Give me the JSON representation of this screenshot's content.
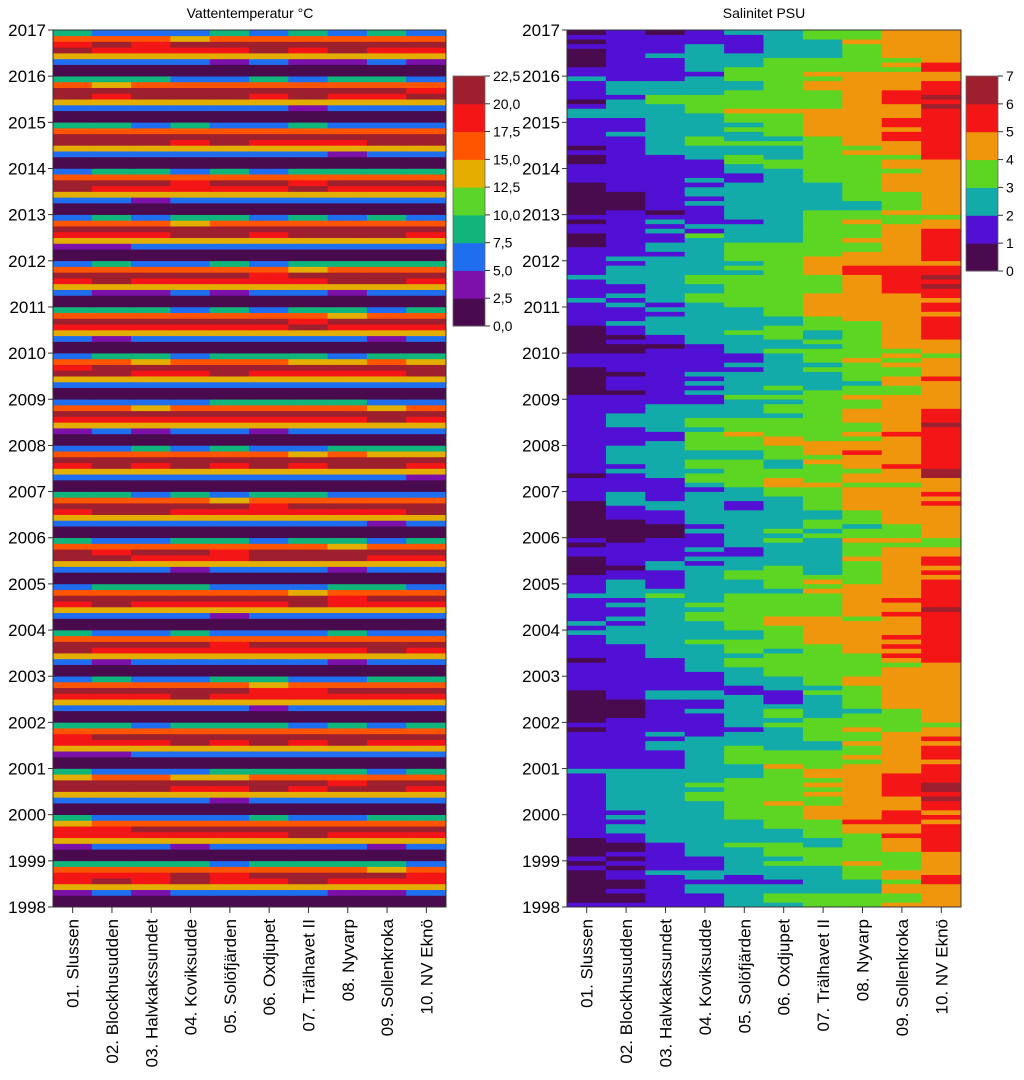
{
  "chart_data": [
    {
      "type": "heatmap",
      "title": "Vattentemperatur °C",
      "xlabel": "",
      "ylabel": "",
      "categories": [
        "01. Slussen",
        "02. Blockhusudden",
        "03. Halvkakssundet",
        "04. Koviksudde",
        "05. Solöfjärden",
        "06. Oxdjupet",
        "07. Trälhavet II",
        "08. Nyvarp",
        "09. Sollenkroka",
        "10. NV Eknö"
      ],
      "y_ticks": [
        "1998",
        "1999",
        "2000",
        "2001",
        "2002",
        "2003",
        "2004",
        "2005",
        "2006",
        "2007",
        "2008",
        "2009",
        "2010",
        "2011",
        "2012",
        "2013",
        "2014",
        "2015",
        "2016",
        "2017"
      ],
      "ylim": [
        1998,
        2017
      ],
      "colorbar": {
        "ticks": [
          "0,0",
          "2,5",
          "5,0",
          "7,5",
          "10,0",
          "12,5",
          "15,0",
          "17,5",
          "20,0",
          "22,5"
        ],
        "range": [
          0,
          22.5
        ]
      },
      "palette": [
        "#4a0a4e",
        "#7b11a8",
        "#1f6ef0",
        "#0fb57a",
        "#5ad62a",
        "#e3ae00",
        "#ff5400",
        "#f41616",
        "#9e1f2e"
      ],
      "data_summary": "Seasonal cycle: surface water temperature oscillates each year between about 0 °C in winter and 17.5–20 °C in summer, nearly uniform across all stations.",
      "legend_position": "right"
    },
    {
      "type": "heatmap",
      "title": "Salinitet PSU",
      "xlabel": "",
      "ylabel": "",
      "categories": [
        "01. Slussen",
        "02. Blockhusudden",
        "03. Halvkakssundet",
        "04. Koviksudde",
        "05. Solöfjärden",
        "06. Oxdjupet",
        "07. Trälhavet II",
        "08. Nyvarp",
        "09. Sollenkroka",
        "10. NV Eknö"
      ],
      "y_ticks": [
        "1998",
        "1999",
        "2000",
        "2001",
        "2002",
        "2003",
        "2004",
        "2005",
        "2006",
        "2007",
        "2008",
        "2009",
        "2010",
        "2011",
        "2012",
        "2013",
        "2014",
        "2015",
        "2016",
        "2017"
      ],
      "ylim": [
        1998,
        2017
      ],
      "colorbar": {
        "ticks": [
          "0",
          "1",
          "2",
          "3",
          "4",
          "5",
          "6",
          "7"
        ],
        "range": [
          0,
          7
        ]
      },
      "palette": [
        "#4a0a4e",
        "#5210d4",
        "#13aaaa",
        "#5cd623",
        "#f0960d",
        "#f41616",
        "#9e1f2e"
      ],
      "station_salinity_approx": [
        1.2,
        1.6,
        2.0,
        2.4,
        2.8,
        3.1,
        3.5,
        4.0,
        4.5,
        5.1
      ],
      "data_summary": "Salinity increases eastward from about 0–2 PSU at Slussen to about 5 PSU at NV Eknö, with year-to-year variability.",
      "legend_position": "right"
    }
  ]
}
